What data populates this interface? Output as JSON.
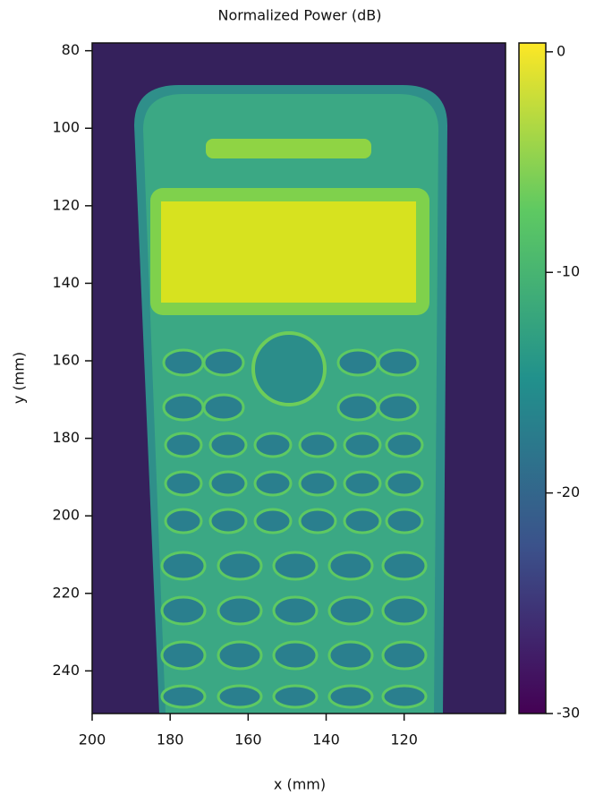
{
  "chart_data": {
    "type": "heatmap",
    "colormap": "viridis",
    "colorbar_label": "Normalized Power (dB)",
    "xlabel": "x (mm)",
    "ylabel": "y (mm)",
    "xlim": [
      200,
      94
    ],
    "ylim": [
      78,
      251
    ],
    "xticks": [
      200,
      180,
      160,
      140,
      120
    ],
    "yticks": [
      80,
      100,
      120,
      140,
      160,
      180,
      200,
      220,
      240
    ],
    "clim": [
      -30,
      0.4
    ],
    "cticks": [
      0,
      -10,
      -20,
      -30
    ]
  }
}
